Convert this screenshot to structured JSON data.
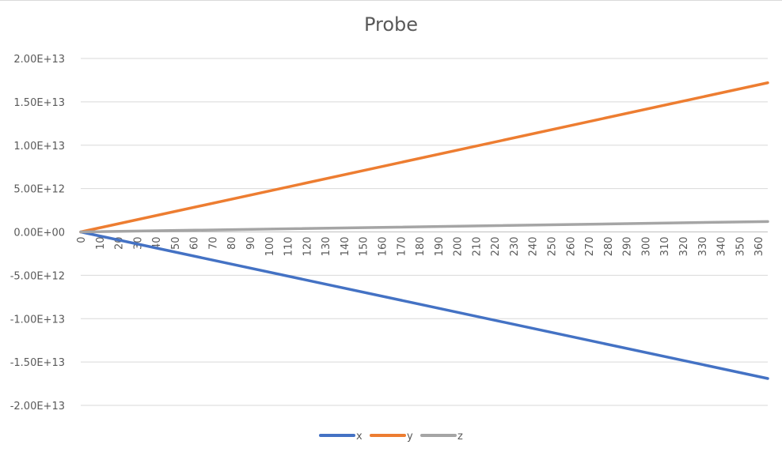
{
  "chart_data": {
    "type": "line",
    "title": "Probe",
    "xlabel": "",
    "ylabel": "",
    "x_range": [
      0,
      365
    ],
    "x_tick_labels": [
      "0",
      "10",
      "20",
      "30",
      "40",
      "50",
      "60",
      "70",
      "80",
      "90",
      "100",
      "110",
      "120",
      "130",
      "140",
      "150",
      "160",
      "170",
      "180",
      "190",
      "200",
      "210",
      "220",
      "230",
      "240",
      "250",
      "260",
      "270",
      "280",
      "290",
      "300",
      "310",
      "320",
      "330",
      "340",
      "350",
      "360"
    ],
    "ylim": [
      -20000000000000,
      20000000000000
    ],
    "y_tick_labels": [
      "2.00E+13",
      "1.50E+13",
      "1.00E+13",
      "5.00E+12",
      "0.00E+00",
      "-5.00E+12",
      "-1.00E+13",
      "-1.50E+13",
      "-2.00E+13"
    ],
    "grid": true,
    "legend_position": "bottom",
    "series": [
      {
        "name": "x",
        "color": "#4472c4",
        "x": [
          0,
          365
        ],
        "y": [
          0,
          -16900000000000
        ]
      },
      {
        "name": "y",
        "color": "#ed7d31",
        "x": [
          0,
          365
        ],
        "y": [
          0,
          17200000000000
        ]
      },
      {
        "name": "z",
        "color": "#a5a5a5",
        "x": [
          0,
          365
        ],
        "y": [
          0,
          1200000000000
        ]
      }
    ]
  }
}
